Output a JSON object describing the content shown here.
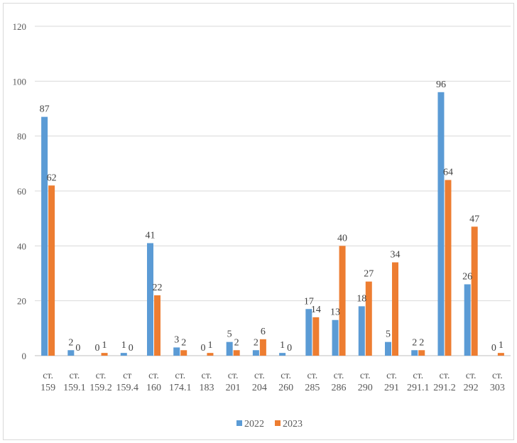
{
  "chart_data": {
    "type": "bar",
    "title": "",
    "xlabel": "",
    "ylabel": "",
    "ylim": [
      0,
      120
    ],
    "yticks": [
      0,
      20,
      40,
      60,
      80,
      100,
      120
    ],
    "grid": true,
    "legend_position": "bottom",
    "categories": [
      [
        "ст.",
        "159"
      ],
      [
        "ст.",
        "159.1"
      ],
      [
        "ст.",
        "159.2"
      ],
      [
        "ст",
        "159.4"
      ],
      [
        "ст.",
        "160"
      ],
      [
        "ст.",
        "174.1"
      ],
      [
        "ст.",
        "183"
      ],
      [
        "ст.",
        "201"
      ],
      [
        "ст.",
        "204"
      ],
      [
        "ст.",
        "260"
      ],
      [
        "ст.",
        "285"
      ],
      [
        "ст.",
        "286"
      ],
      [
        "ст.",
        "290"
      ],
      [
        "ст.",
        "291"
      ],
      [
        "ст.",
        "291.1"
      ],
      [
        "ст.",
        "291.2"
      ],
      [
        "ст.",
        "292"
      ],
      [
        "ст.",
        "303"
      ]
    ],
    "series": [
      {
        "name": "2022",
        "color": "#5B9BD5",
        "values": [
          87,
          2,
          0,
          1,
          41,
          3,
          0,
          5,
          2,
          1,
          17,
          13,
          18,
          5,
          2,
          96,
          26,
          0
        ]
      },
      {
        "name": "2023",
        "color": "#ED7D31",
        "values": [
          62,
          0,
          1,
          0,
          22,
          2,
          1,
          2,
          6,
          0,
          14,
          40,
          27,
          34,
          2,
          64,
          47,
          1
        ]
      }
    ]
  }
}
